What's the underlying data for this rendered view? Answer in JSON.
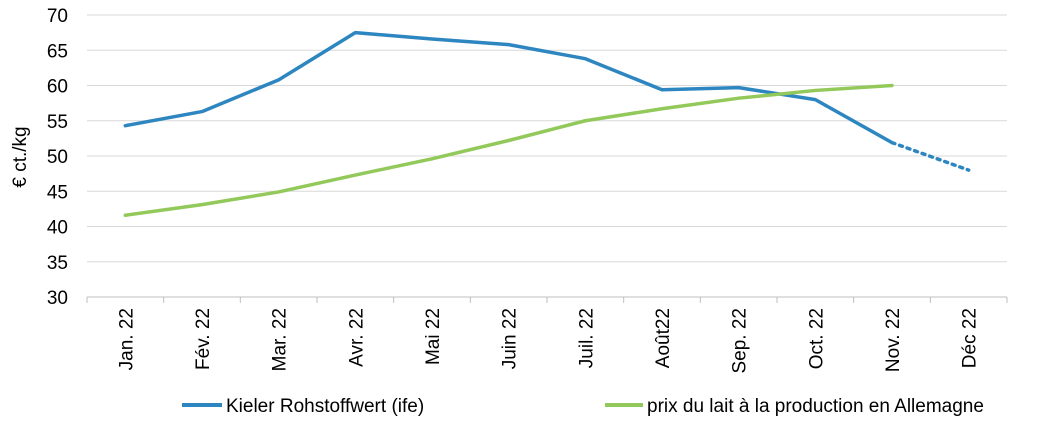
{
  "chart_data": {
    "type": "line",
    "categories": [
      "Jan. 22",
      "Fév. 22",
      "Mar. 22",
      "Avr. 22",
      "Mai 22",
      "Juin 22",
      "Juil. 22",
      "Août22",
      "Sep. 22",
      "Oct. 22",
      "Nov. 22",
      "Déc 22"
    ],
    "ylabel": "€ ct./kg",
    "ylim": [
      30,
      70
    ],
    "yticks": [
      30,
      35,
      40,
      45,
      50,
      55,
      60,
      65,
      70
    ],
    "grid": true,
    "legend_position": "bottom",
    "series": [
      {
        "name": "Kieler Rohstoffwert (ife)",
        "color": "#2e86c1",
        "values": [
          54.3,
          56.3,
          60.8,
          67.5,
          66.6,
          65.8,
          63.8,
          59.4,
          59.7,
          58.0,
          51.9,
          48.0
        ],
        "dotted_from_index": 10
      },
      {
        "name": "prix du lait à la production en Allemagne",
        "color": "#92c95a",
        "values": [
          41.6,
          43.1,
          44.9,
          47.3,
          49.6,
          52.2,
          55.0,
          56.7,
          58.2,
          59.3,
          60.0,
          null
        ]
      }
    ]
  }
}
